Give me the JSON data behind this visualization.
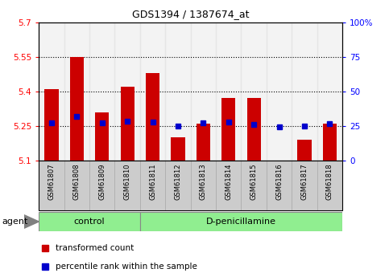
{
  "title": "GDS1394 / 1387674_at",
  "samples": [
    "GSM61807",
    "GSM61808",
    "GSM61809",
    "GSM61810",
    "GSM61811",
    "GSM61812",
    "GSM61813",
    "GSM61814",
    "GSM61815",
    "GSM61816",
    "GSM61817",
    "GSM61818"
  ],
  "transformed_count": [
    5.41,
    5.55,
    5.31,
    5.42,
    5.48,
    5.2,
    5.26,
    5.37,
    5.37,
    5.1,
    5.19,
    5.26
  ],
  "percentile_rank": [
    5.265,
    5.29,
    5.265,
    5.27,
    5.268,
    5.25,
    5.263,
    5.266,
    5.258,
    5.248,
    5.25,
    5.262
  ],
  "ymin": 5.1,
  "ymax": 5.7,
  "yticks": [
    5.1,
    5.25,
    5.4,
    5.55,
    5.7
  ],
  "ytick_labels": [
    "5.1",
    "5.25",
    "5.4",
    "5.55",
    "5.7"
  ],
  "gridlines": [
    5.25,
    5.4,
    5.55
  ],
  "right_yticks": [
    0,
    25,
    50,
    75,
    100
  ],
  "right_ytick_labels": [
    "0",
    "25",
    "50",
    "75",
    "100%"
  ],
  "control_count": 4,
  "dp_count": 8,
  "bar_color": "#cc0000",
  "dot_color": "#0000cc",
  "bar_width": 0.55,
  "dot_size": 5,
  "group_color": "#90ee90",
  "group_border": "#888888",
  "tick_bg_color": "#cccccc",
  "legend_items": [
    {
      "label": "transformed count",
      "color": "#cc0000"
    },
    {
      "label": "percentile rank within the sample",
      "color": "#0000cc"
    }
  ]
}
